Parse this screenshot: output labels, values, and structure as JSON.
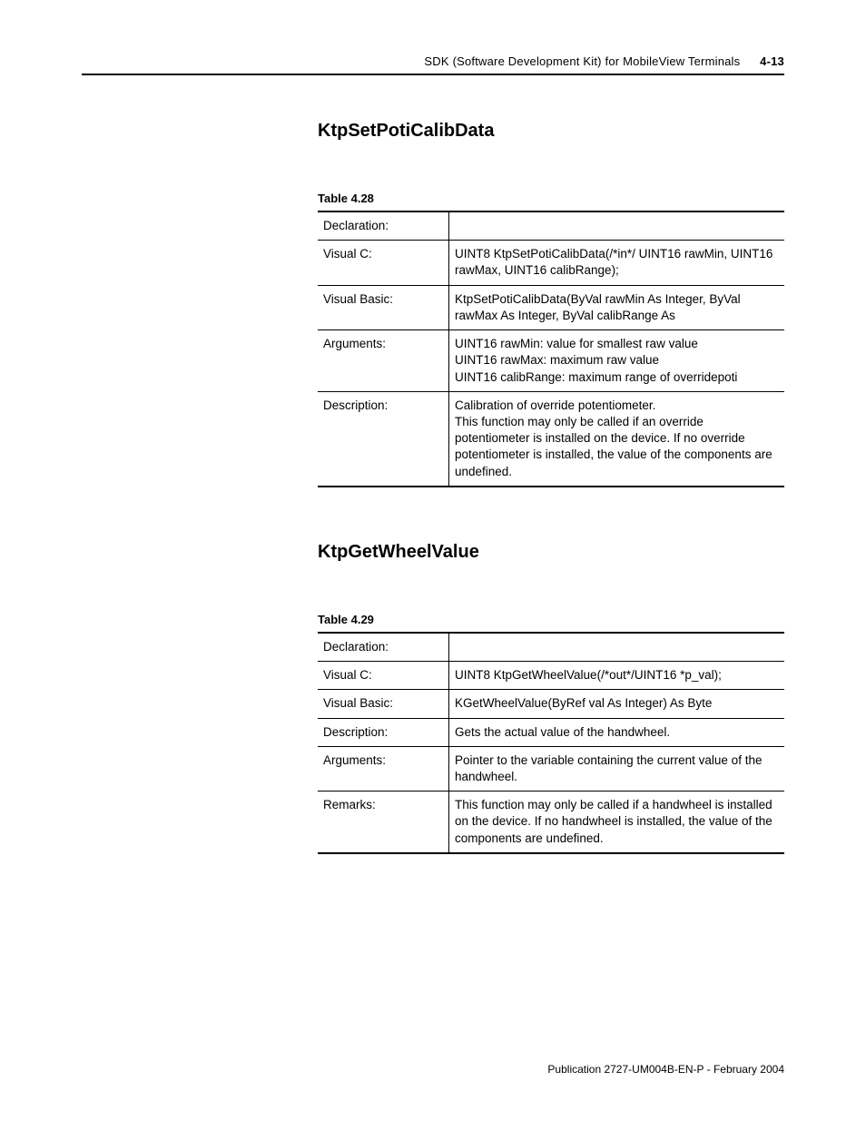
{
  "header": {
    "text": "SDK (Software Development Kit) for MobileView Terminals",
    "page_number": "4-13"
  },
  "section1": {
    "title": "KtpSetPotiCalibData",
    "caption": "Table 4.28",
    "rows": {
      "decl_label": "Declaration:",
      "decl_val": "",
      "vc_label": "Visual C:",
      "vc_val": "UINT8 KtpSetPotiCalibData(/*in*/ UINT16 rawMin, UINT16 rawMax, UINT16 calibRange);",
      "vb_label": "Visual Basic:",
      "vb_val": "KtpSetPotiCalibData(ByVal rawMin As Integer, ByVal rawMax As Integer, ByVal calibRange As",
      "args_label": "Arguments:",
      "args_val": "UINT16 rawMin: value for smallest raw value\nUINT16 rawMax: maximum raw value\nUINT16 calibRange: maximum range of overridepoti",
      "desc_label": "Description:",
      "desc_val": "Calibration of override potentiometer.\nThis function may only be called if an override potentiometer is installed on the device. If no override potentiometer is installed, the value of the components are undefined."
    }
  },
  "section2": {
    "title": "KtpGetWheelValue",
    "caption": "Table 4.29",
    "rows": {
      "decl_label": "Declaration:",
      "decl_val": "",
      "vc_label": "Visual C:",
      "vc_val": "UINT8 KtpGetWheelValue(/*out*/UINT16 *p_val);",
      "vb_label": "Visual Basic:",
      "vb_val": "KGetWheelValue(ByRef val As Integer) As Byte",
      "desc_label": "Description:",
      "desc_val": "Gets the actual value of the handwheel.",
      "args_label": "Arguments:",
      "args_val": "Pointer to the variable containing the current value of the handwheel.",
      "rem_label": "Remarks:",
      "rem_val": "This function may only be called if a handwheel is installed on the device. If no handwheel is installed, the value of the components are undefined."
    }
  },
  "footer": {
    "text": "Publication 2727-UM004B-EN-P - February 2004"
  }
}
